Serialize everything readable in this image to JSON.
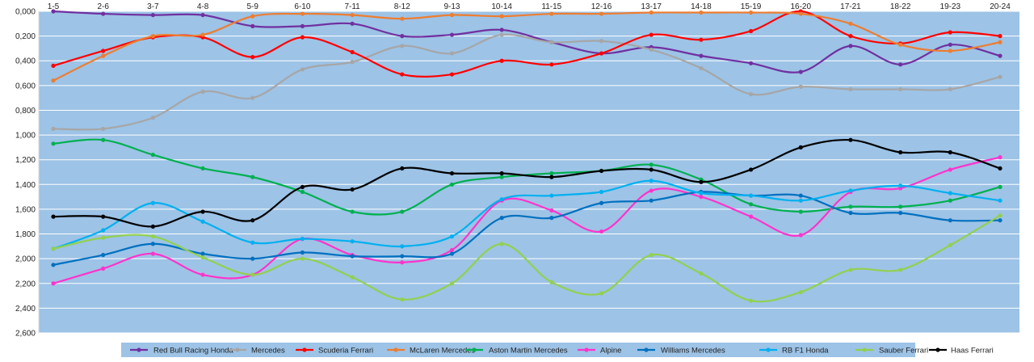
{
  "chart_data": {
    "type": "line",
    "title": "",
    "xlabel": "",
    "ylabel": "",
    "ylim": [
      0,
      2.6
    ],
    "y_reversed": true,
    "y_tick_labels": [
      "0,000",
      "0,200",
      "0,400",
      "0,600",
      "0,800",
      "1,000",
      "1,200",
      "1,400",
      "1,600",
      "1,800",
      "2,000",
      "2,200",
      "2,400",
      "2,600"
    ],
    "y_ticks": [
      0,
      0.2,
      0.4,
      0.6,
      0.8,
      1.0,
      1.2,
      1.4,
      1.6,
      1.8,
      2.0,
      2.2,
      2.4,
      2.6
    ],
    "x_axis_position": "top",
    "grid": true,
    "plot_background": "#9dc3e6",
    "legend_position": "bottom",
    "categories": [
      "1-5",
      "2-6",
      "3-7",
      "4-8",
      "5-9",
      "6-10",
      "7-11",
      "8-12",
      "9-13",
      "10-14",
      "11-15",
      "12-16",
      "13-17",
      "14-18",
      "15-19",
      "16-20",
      "17-21",
      "18-22",
      "19-23",
      "20-24"
    ],
    "series": [
      {
        "name": "Red Bull Racing Honda",
        "color": "#7030a0",
        "values": [
          0.0,
          0.02,
          0.03,
          0.03,
          0.12,
          0.12,
          0.1,
          0.2,
          0.19,
          0.15,
          0.25,
          0.34,
          0.29,
          0.36,
          0.42,
          0.49,
          0.28,
          0.43,
          0.27,
          0.36
        ]
      },
      {
        "name": "Mercedes",
        "color": "#a6a6a6",
        "values": [
          0.95,
          0.95,
          0.86,
          0.65,
          0.7,
          0.47,
          0.41,
          0.28,
          0.34,
          0.19,
          0.25,
          0.24,
          0.31,
          0.46,
          0.67,
          0.61,
          0.63,
          0.63,
          0.63,
          0.53
        ]
      },
      {
        "name": "Scuderia Ferrari",
        "color": "#ff0000",
        "values": [
          0.44,
          0.32,
          0.21,
          0.21,
          0.37,
          0.21,
          0.33,
          0.51,
          0.51,
          0.4,
          0.43,
          0.34,
          0.19,
          0.23,
          0.16,
          0.0,
          0.2,
          0.26,
          0.17,
          0.2
        ]
      },
      {
        "name": "McLaren Mercedes",
        "color": "#ed7d31",
        "values": [
          0.56,
          0.36,
          0.2,
          0.19,
          0.04,
          0.02,
          0.03,
          0.06,
          0.03,
          0.04,
          0.02,
          0.02,
          0.01,
          0.01,
          0.01,
          0.02,
          0.1,
          0.27,
          0.32,
          0.25
        ]
      },
      {
        "name": "Aston Martin Mercedes",
        "color": "#00b050",
        "values": [
          1.07,
          1.04,
          1.16,
          1.27,
          1.34,
          1.46,
          1.62,
          1.62,
          1.4,
          1.34,
          1.31,
          1.29,
          1.24,
          1.36,
          1.56,
          1.62,
          1.58,
          1.58,
          1.53,
          1.42
        ]
      },
      {
        "name": "Alpine",
        "color": "#ff33cc",
        "values": [
          2.2,
          2.08,
          1.96,
          2.13,
          2.13,
          1.84,
          1.97,
          2.03,
          1.93,
          1.53,
          1.61,
          1.78,
          1.45,
          1.5,
          1.66,
          1.81,
          1.46,
          1.43,
          1.28,
          1.18
        ]
      },
      {
        "name": "Williams Mercedes",
        "color": "#0070c0",
        "values": [
          2.05,
          1.97,
          1.88,
          1.96,
          2.0,
          1.95,
          1.98,
          1.98,
          1.96,
          1.67,
          1.67,
          1.55,
          1.53,
          1.46,
          1.49,
          1.49,
          1.63,
          1.63,
          1.69,
          1.69
        ]
      },
      {
        "name": "RB F1 Honda",
        "color": "#00b0f0",
        "values": [
          1.92,
          1.77,
          1.55,
          1.7,
          1.87,
          1.84,
          1.86,
          1.9,
          1.82,
          1.52,
          1.49,
          1.46,
          1.37,
          1.47,
          1.49,
          1.53,
          1.45,
          1.41,
          1.47,
          1.53
        ]
      },
      {
        "name": "Sauber Ferrari",
        "color": "#92d050",
        "values": [
          1.92,
          1.83,
          1.82,
          1.99,
          2.13,
          2.0,
          2.15,
          2.33,
          2.2,
          1.88,
          2.19,
          2.28,
          1.97,
          2.12,
          2.34,
          2.27,
          2.09,
          2.09,
          1.89,
          1.65
        ]
      },
      {
        "name": "Haas Ferrari",
        "color": "#000000",
        "values": [
          1.66,
          1.66,
          1.74,
          1.62,
          1.69,
          1.42,
          1.44,
          1.27,
          1.31,
          1.31,
          1.34,
          1.29,
          1.28,
          1.38,
          1.28,
          1.1,
          1.04,
          1.14,
          1.14,
          1.27
        ]
      }
    ]
  }
}
